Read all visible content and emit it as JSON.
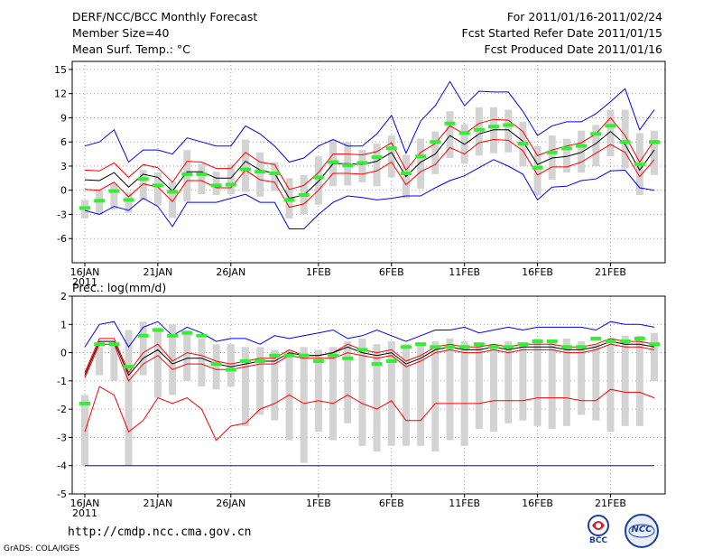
{
  "header": {
    "left": [
      "DERF/NCC/BCC Monthly Forecast",
      "Member Size=40",
      "Mean Surf. Temp.: °C"
    ],
    "right": [
      "For 2011/01/16-2011/02/24",
      "Fcst Started Refer Date 2011/01/15",
      "Fcst Produced Date 2011/01/16"
    ]
  },
  "footer": {
    "url": "http://cmdp.ncc.cma.gov.cn",
    "credit": "GrADS: COLA/IGES",
    "logo_left_label": "BCC",
    "logo_right_label": "NCC"
  },
  "colors": {
    "envelope": "#0000ff",
    "spread": "#ff0000",
    "mean": "#000000",
    "obs": "#33ee33",
    "box": "#d3d3d3"
  },
  "chart_data": [
    {
      "type": "line",
      "title": "Mean Surf. Temp.: °C",
      "x_tick_labels": [
        "16JAN",
        "21JAN",
        "26JAN",
        "1FEB",
        "6FEB",
        "11FEB",
        "16FEB",
        "21FEB"
      ],
      "x_tick_days": [
        0,
        5,
        10,
        16,
        21,
        26,
        31,
        36
      ],
      "year_label": "2011",
      "ylim": [
        -9,
        16
      ],
      "yticks": [
        -6,
        -3,
        0,
        3,
        6,
        9,
        12,
        15
      ],
      "series": [
        {
          "name": "max",
          "values": [
            5.5,
            6,
            7.5,
            3.5,
            5,
            5,
            4.5,
            6.5,
            6,
            5.5,
            5.5,
            8,
            7,
            5.5,
            3.5,
            4,
            5.5,
            6.3,
            5.5,
            5.5,
            7,
            9.3,
            4.6,
            8.6,
            10.5,
            13.5,
            10.5,
            12.3,
            12.2,
            12.2,
            9.8,
            6.8,
            8,
            8.5,
            8.5,
            9.5,
            11,
            12.6,
            7.5,
            10
          ]
        },
        {
          "name": "upper",
          "values": [
            2.5,
            2.4,
            3.4,
            1.6,
            3.2,
            2.8,
            1,
            3.6,
            3.5,
            2.7,
            2.7,
            4.7,
            3.5,
            3.2,
            0.1,
            0.6,
            2.2,
            4.5,
            4.5,
            4.4,
            4.8,
            5.9,
            2.5,
            4.7,
            5.8,
            8,
            7,
            8.3,
            8.8,
            8.7,
            7.3,
            4.3,
            5,
            5.5,
            5.9,
            7,
            9,
            6.8,
            3.5,
            6.2
          ]
        },
        {
          "name": "mean",
          "values": [
            1.3,
            1.2,
            2.2,
            0.4,
            2,
            1.6,
            -0.1,
            2.3,
            2.3,
            1.5,
            1.5,
            3.6,
            2.5,
            2.1,
            -1,
            -0.6,
            1.1,
            3.3,
            3.3,
            3.2,
            3.6,
            4.7,
            1.7,
            3.5,
            4.5,
            6.8,
            5.7,
            7,
            7.5,
            7.5,
            6.1,
            3.2,
            4,
            4.2,
            4.7,
            5.8,
            7.3,
            5.7,
            2.5,
            5
          ]
        },
        {
          "name": "lower",
          "values": [
            0.1,
            0,
            1,
            -0.8,
            0.8,
            0.4,
            -1.4,
            1.2,
            1.2,
            0.3,
            0.3,
            2.5,
            1.3,
            1,
            -2.1,
            -1.7,
            0,
            2.1,
            2.1,
            2,
            2.4,
            3.5,
            0.7,
            2.3,
            3.2,
            5.3,
            4.5,
            5.9,
            6.3,
            6.2,
            4.9,
            1.9,
            2.9,
            2.9,
            3.5,
            4.6,
            5.7,
            4.7,
            1.7,
            3.8
          ]
        },
        {
          "name": "min",
          "values": [
            -2.5,
            -3,
            -2,
            -2.5,
            -1,
            -2,
            -4.5,
            -1.5,
            -1.5,
            -1.5,
            -1,
            -0.5,
            -1.5,
            -1.5,
            -4.8,
            -4.8,
            -3,
            -1.5,
            -0.7,
            -0.9,
            -1.2,
            -1,
            -0.7,
            -0.7,
            0.3,
            1.2,
            1.8,
            2.8,
            3.8,
            3,
            2,
            -1.2,
            0.4,
            0.5,
            1.2,
            1.4,
            2.4,
            2.5,
            0.3,
            0
          ]
        },
        {
          "name": "box_top",
          "values": [
            -1.2,
            0,
            0.8,
            -0.3,
            2.5,
            2.2,
            1,
            5,
            3.3,
            2.3,
            3.2,
            6.3,
            4.7,
            3.5,
            1.5,
            1.9,
            4.2,
            6.3,
            6,
            5,
            5.8,
            6.8,
            4.4,
            6.4,
            7.3,
            9.8,
            8.2,
            10.3,
            10.3,
            10,
            8.5,
            5.5,
            6.8,
            6.4,
            7.4,
            8.1,
            10,
            10,
            7.1,
            7.4
          ]
        },
        {
          "name": "box_bottom",
          "values": [
            -3.5,
            -3,
            -2.4,
            -2.8,
            -1.2,
            -1.9,
            -3.4,
            -1.4,
            -0.5,
            -0.6,
            -0.5,
            -0.2,
            -0.8,
            -0.1,
            -3.5,
            -3,
            -1.8,
            0.5,
            0.6,
            1,
            0.5,
            1.6,
            -1,
            0.2,
            2,
            4,
            3.3,
            4.3,
            4.6,
            4.7,
            3,
            -0.6,
            1.3,
            2.2,
            2.2,
            3,
            4.2,
            2.7,
            -0.6,
            1.9
          ]
        },
        {
          "name": "observed",
          "values": [
            -2.2,
            -1.3,
            -0.1,
            -1.2,
            1.4,
            0.6,
            -0.2,
            2,
            2,
            0.6,
            0.7,
            2.6,
            2.3,
            2.1,
            -1.2,
            -0.6,
            1.6,
            3.5,
            3.1,
            3.4,
            4.1,
            5.2,
            2.1,
            4.2,
            6,
            8.3,
            7.1,
            7.5,
            7.9,
            8.1,
            5.8,
            2.8,
            4.7,
            5.2,
            5.5,
            7,
            8,
            6,
            3.2,
            6
          ]
        }
      ]
    },
    {
      "type": "line",
      "title": "Prec.: log(mm/d)",
      "x_tick_labels": [
        "16JAN",
        "21JAN",
        "26JAN",
        "1FEB",
        "6FEB",
        "11FEB",
        "16FEB",
        "21FEB"
      ],
      "x_tick_days": [
        0,
        5,
        10,
        16,
        21,
        26,
        31,
        36
      ],
      "year_label": "2011",
      "ylim": [
        -5,
        2
      ],
      "yticks": [
        -5,
        -4,
        -3,
        -2,
        -1,
        0,
        1,
        2
      ],
      "series": [
        {
          "name": "max",
          "values": [
            0.2,
            1,
            1.1,
            0.2,
            0.9,
            1.1,
            0.6,
            0.9,
            0.7,
            0.4,
            0.5,
            0.5,
            0.3,
            0.6,
            0.5,
            0.6,
            0.7,
            0.8,
            0.5,
            0.6,
            0.8,
            0.6,
            0.4,
            0.6,
            0.8,
            0.8,
            0.9,
            0.7,
            0.8,
            0.9,
            0.8,
            0.9,
            0.9,
            0.9,
            0.9,
            0.8,
            1.1,
            1,
            1,
            0.9
          ]
        },
        {
          "name": "upper",
          "values": [
            -0.7,
            0.5,
            0.5,
            -0.7,
            0,
            0.3,
            -0.3,
            0,
            -0.1,
            -0.3,
            -0.4,
            -0.3,
            -0.2,
            -0.2,
            0.1,
            -0.1,
            -0.1,
            0,
            0.3,
            0.1,
            0,
            0.1,
            -0.3,
            -0.1,
            0.2,
            0.3,
            0.2,
            0.2,
            0.3,
            0.2,
            0.3,
            0.3,
            0.3,
            0.2,
            0.2,
            0.3,
            0.5,
            0.4,
            0.4,
            0.3
          ]
        },
        {
          "name": "mean",
          "values": [
            -0.8,
            0.4,
            0.4,
            -0.8,
            -0.2,
            0.1,
            -0.4,
            -0.2,
            -0.2,
            -0.4,
            -0.5,
            -0.4,
            -0.3,
            -0.3,
            0,
            -0.1,
            -0.1,
            0,
            0.2,
            0,
            -0.1,
            0,
            -0.4,
            -0.2,
            0.1,
            0.2,
            0.1,
            0.1,
            0.2,
            0.1,
            0.2,
            0.2,
            0.2,
            0.1,
            0.1,
            0.2,
            0.4,
            0.3,
            0.3,
            0.2
          ]
        },
        {
          "name": "lower",
          "values": [
            -0.9,
            0.3,
            0.3,
            -1,
            -0.4,
            -0.1,
            -0.6,
            -0.4,
            -0.4,
            -0.6,
            -0.6,
            -0.5,
            -0.4,
            -0.4,
            -0.1,
            -0.2,
            -0.2,
            -0.2,
            0,
            -0.1,
            -0.2,
            -0.1,
            -0.5,
            -0.3,
            0,
            0.1,
            0,
            0,
            0.1,
            0,
            0.1,
            0.1,
            0.1,
            0,
            0,
            0.1,
            0.3,
            0.2,
            0.2,
            0.1
          ]
        },
        {
          "name": "min",
          "values": [
            -2.8,
            -1.2,
            -1.5,
            -2.8,
            -2.4,
            -1.6,
            -1.8,
            -1.6,
            -2,
            -3.1,
            -2.6,
            -2.5,
            -2,
            -1.8,
            -1.5,
            -1.8,
            -1.7,
            -1.8,
            -1.5,
            -1.8,
            -2,
            -1.7,
            -2.4,
            -2.4,
            -1.8,
            -1.8,
            -1.8,
            -1.8,
            -1.7,
            -1.7,
            -1.7,
            -1.6,
            -1.6,
            -1.6,
            -1.7,
            -1.7,
            -1.3,
            -1.4,
            -1.4,
            -1.6
          ]
        },
        {
          "name": "floor",
          "values": [
            -4,
            -4,
            -4,
            -4,
            -4,
            -4,
            -4,
            -4,
            -4,
            -4,
            -4,
            -4,
            -4,
            -4,
            -4,
            -4,
            -4,
            -4,
            -4,
            -4,
            -4,
            -4,
            -4,
            -4,
            -4,
            -4,
            -4,
            -4,
            -4,
            -4,
            -4,
            -4,
            -4,
            -4,
            -4,
            -4,
            -4,
            -4,
            -4,
            -4
          ]
        },
        {
          "name": "box_top",
          "values": [
            -1.5,
            0.2,
            0.3,
            0.8,
            1.1,
            0.9,
            1,
            0.8,
            0.5,
            0.3,
            0.3,
            0.2,
            0.2,
            0.1,
            0.1,
            0.2,
            0.1,
            0.2,
            0.4,
            0.5,
            0.3,
            0.4,
            0.3,
            0.3,
            0.4,
            0.5,
            0.4,
            0.3,
            0.3,
            0.4,
            0.3,
            0.5,
            0.4,
            0.5,
            0.4,
            0.3,
            0.5,
            0.6,
            0.6,
            0.7
          ]
        },
        {
          "name": "box_bottom",
          "values": [
            -4,
            -0.8,
            -1,
            -4,
            -0.8,
            -1.6,
            -1.5,
            -1,
            -1.2,
            -1.3,
            -1.2,
            -2.6,
            -2.2,
            -2.4,
            -3.1,
            -3.9,
            -2.8,
            -3.1,
            -2.5,
            -3.3,
            -3.5,
            -3.3,
            -3.3,
            -3.3,
            -3.5,
            -3.1,
            -3.3,
            -2.7,
            -2.8,
            -2.5,
            -2.4,
            -2.6,
            -2.7,
            -2.6,
            -2.2,
            -2.4,
            -2.8,
            -2.6,
            -2.6,
            -1
          ]
        },
        {
          "name": "observed",
          "values": [
            -1.8,
            0.3,
            0.3,
            -0.5,
            0.6,
            0.8,
            0.6,
            0.7,
            0.6,
            -0.4,
            -0.6,
            -0.3,
            -0.3,
            -0.1,
            -0.1,
            -0.1,
            -0.3,
            -0.1,
            -0.2,
            0.1,
            -0.4,
            -0.3,
            0.2,
            0.3,
            0.2,
            0.2,
            0.2,
            0.3,
            0.2,
            0.2,
            0.3,
            0.4,
            0.4,
            0.2,
            0.2,
            0.5,
            0.4,
            0.4,
            0.5,
            0.3
          ]
        }
      ]
    }
  ]
}
